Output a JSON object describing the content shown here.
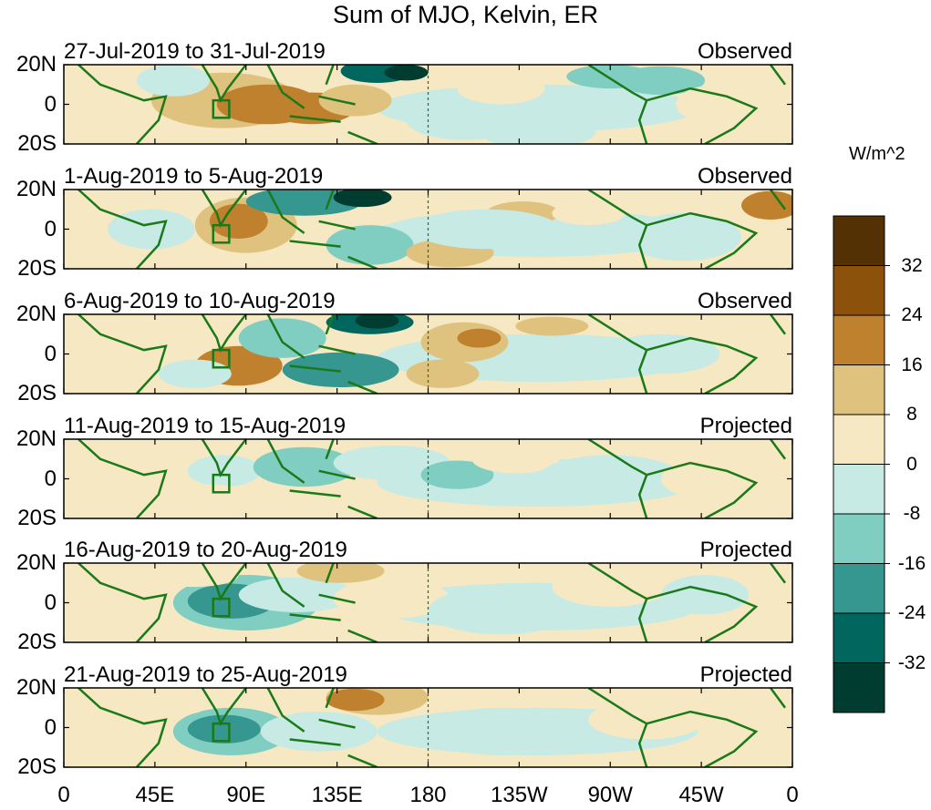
{
  "title": "Sum of MJO, Kelvin, ER",
  "panels": [
    {
      "date_range": "27-Jul-2019 to 31-Jul-2019",
      "status": "Observed"
    },
    {
      "date_range": "1-Aug-2019 to 5-Aug-2019",
      "status": "Observed"
    },
    {
      "date_range": "6-Aug-2019 to 10-Aug-2019",
      "status": "Observed"
    },
    {
      "date_range": "11-Aug-2019 to 15-Aug-2019",
      "status": "Projected"
    },
    {
      "date_range": "16-Aug-2019 to 20-Aug-2019",
      "status": "Projected"
    },
    {
      "date_range": "21-Aug-2019 to 25-Aug-2019",
      "status": "Projected"
    }
  ],
  "lat_labels": [
    "20N",
    "0",
    "20S"
  ],
  "lon_labels": [
    "0",
    "45E",
    "90E",
    "135E",
    "180",
    "135W",
    "90W",
    "45W",
    "0"
  ],
  "colorbar": {
    "units": "W/m^2",
    "tick_labels": [
      "32",
      "24",
      "16",
      "8",
      "0",
      "-8",
      "-16",
      "-24",
      "-32"
    ],
    "colors": [
      "#543005",
      "#8c510a",
      "#bf812d",
      "#dfc27d",
      "#f6e8c3",
      "#c7eae5",
      "#80cdc1",
      "#35978f",
      "#01665e",
      "#003c30"
    ]
  },
  "colors": {
    "coast": "#1a7a1a",
    "dateline": "#1a7a1a"
  }
}
